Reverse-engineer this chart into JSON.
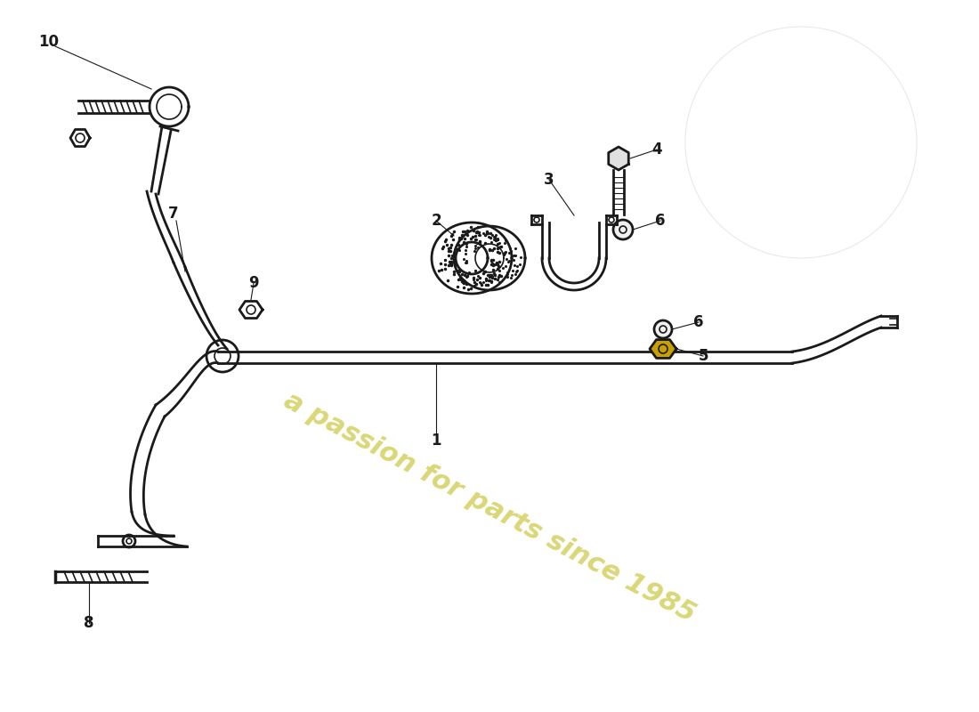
{
  "background_color": "#ffffff",
  "line_color": "#1a1a1a",
  "watermark_text": "a passion for parts since 1985",
  "watermark_color": "#d4d060",
  "figsize": [
    11.0,
    8.0
  ],
  "dpi": 100
}
